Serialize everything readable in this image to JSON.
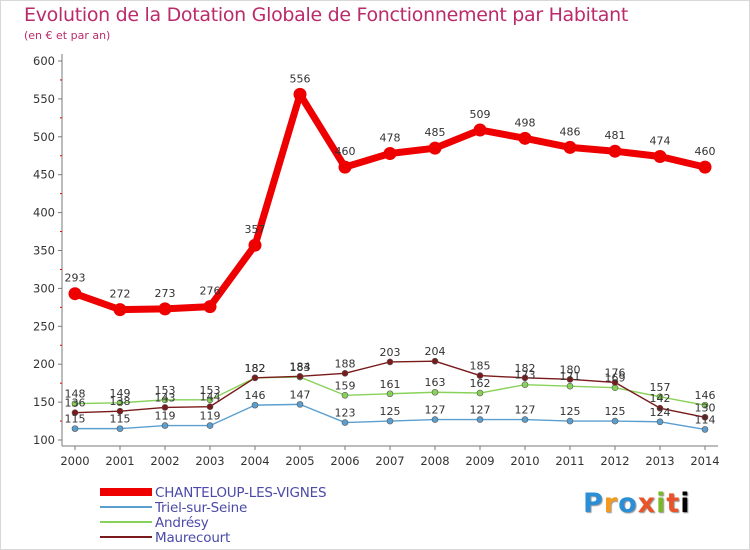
{
  "chart_data": {
    "type": "line",
    "title": "Evolution de la Dotation Globale de Fonctionnement par Habitant",
    "subtitle": "(en € et par an)",
    "x": [
      "2000",
      "2001",
      "2002",
      "2003",
      "2004",
      "2005",
      "2006",
      "2007",
      "2008",
      "2009",
      "2010",
      "2011",
      "2012",
      "2013",
      "2014"
    ],
    "ylim": [
      100,
      600
    ],
    "yticks": [
      100,
      150,
      200,
      250,
      300,
      350,
      400,
      450,
      500,
      550,
      600
    ],
    "grid": false,
    "legend_position": "bottom-left",
    "series": [
      {
        "name": "CHANTELOUP-LES-VIGNES",
        "color": "#ee0000",
        "values": [
          293,
          272,
          273,
          276,
          357,
          556,
          460,
          478,
          485,
          509,
          498,
          486,
          481,
          474,
          460
        ]
      },
      {
        "name": "Triel-sur-Seine",
        "color": "#5b9fd0",
        "values": [
          115,
          115,
          119,
          119,
          146,
          147,
          123,
          125,
          127,
          127,
          127,
          125,
          125,
          124,
          114
        ]
      },
      {
        "name": "Andrésy",
        "color": "#88d25a",
        "values": [
          148,
          149,
          153,
          153,
          182,
          183,
          159,
          161,
          163,
          162,
          173,
          171,
          169,
          157,
          146
        ]
      },
      {
        "name": "Maurecourt",
        "color": "#7a1a1a",
        "values": [
          136,
          138,
          143,
          144,
          182,
          184,
          188,
          203,
          204,
          185,
          182,
          180,
          176,
          142,
          130
        ]
      }
    ]
  }
}
